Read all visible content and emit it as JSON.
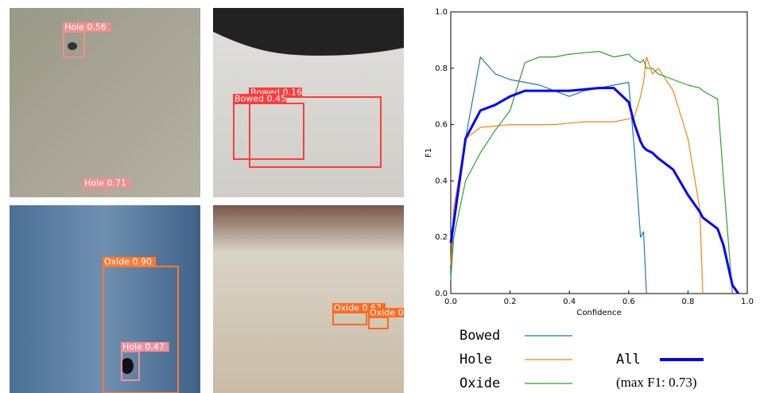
{
  "images": [
    {
      "detections": [
        {
          "label": "Hole 0.56"
        },
        {
          "label": "Hole 0.71"
        }
      ]
    },
    {
      "detections": [
        {
          "label": "Bowed 0.16"
        },
        {
          "label": "Bowed 0.45"
        }
      ]
    },
    {
      "detections": [
        {
          "label": "Oxide 0.90"
        },
        {
          "label": "Hole 0.47"
        }
      ]
    },
    {
      "detections": [
        {
          "label": "Oxide 0.67"
        },
        {
          "label": "Oxide 0"
        }
      ]
    }
  ],
  "chart_data": {
    "type": "line",
    "xlabel": "Confidence",
    "ylabel": "F1",
    "x": [
      0,
      0.01,
      0.05,
      0.1,
      0.15,
      0.2,
      0.25,
      0.3,
      0.35,
      0.4,
      0.45,
      0.5,
      0.55,
      0.6,
      0.62,
      0.64,
      0.65,
      0.66,
      0.68,
      0.7,
      0.75,
      0.8,
      0.84,
      0.85,
      0.9,
      0.92,
      0.95,
      0.97
    ],
    "series": [
      {
        "name": "Bowed",
        "color": "#1f77b4",
        "values": [
          0.05,
          0.3,
          0.55,
          0.84,
          0.78,
          0.76,
          0.75,
          0.74,
          0.72,
          0.7,
          0.72,
          0.73,
          0.74,
          0.75,
          0.5,
          0.2,
          0.22,
          0,
          null,
          null,
          null,
          null,
          null,
          null,
          null,
          null,
          null,
          null
        ]
      },
      {
        "name": "Hole",
        "color": "#ff7f0e",
        "values": [
          0.1,
          0.3,
          0.55,
          0.59,
          0.595,
          0.6,
          0.6,
          0.6,
          0.6,
          0.605,
          0.61,
          0.61,
          0.61,
          0.62,
          0.63,
          0.7,
          0.75,
          0.84,
          0.78,
          0.8,
          0.72,
          0.55,
          0.3,
          0,
          null,
          null,
          null,
          null
        ]
      },
      {
        "name": "Oxide",
        "color": "#2ca02c",
        "values": [
          0.05,
          0.2,
          0.4,
          0.5,
          0.58,
          0.65,
          0.82,
          0.84,
          0.84,
          0.85,
          0.855,
          0.86,
          0.84,
          0.85,
          0.83,
          0.82,
          0.83,
          0.8,
          0.8,
          0.78,
          0.76,
          0.74,
          0.73,
          0.72,
          0.69,
          0.4,
          0,
          null
        ]
      },
      {
        "name": "All",
        "color": "#0000ff",
        "values": [
          0.18,
          0.25,
          0.55,
          0.65,
          0.67,
          0.7,
          0.72,
          0.72,
          0.72,
          0.72,
          0.725,
          0.73,
          0.73,
          0.68,
          0.6,
          0.54,
          0.52,
          0.51,
          0.5,
          0.48,
          0.44,
          0.35,
          0.29,
          0.27,
          0.23,
          0.17,
          0.03,
          0
        ]
      }
    ],
    "annotation": "(max F1: 0.73)",
    "xlim": [
      0,
      1
    ],
    "ylim": [
      0,
      1
    ],
    "xticks": [
      {
        "value": 0,
        "label": "0.0"
      },
      {
        "value": 0.2,
        "label": "0.2"
      },
      {
        "value": 0.4,
        "label": "0.4"
      },
      {
        "value": 0.6,
        "label": "0.6"
      },
      {
        "value": 0.8,
        "label": "0.8"
      },
      {
        "value": 1,
        "label": "1.0"
      }
    ],
    "yticks": [
      {
        "value": 0,
        "label": "0.0"
      },
      {
        "value": 0.2,
        "label": "0.2"
      },
      {
        "value": 0.4,
        "label": "0.4"
      },
      {
        "value": 0.6,
        "label": "0.6"
      },
      {
        "value": 0.8,
        "label": "0.8"
      },
      {
        "value": 1,
        "label": "1.0"
      }
    ]
  }
}
